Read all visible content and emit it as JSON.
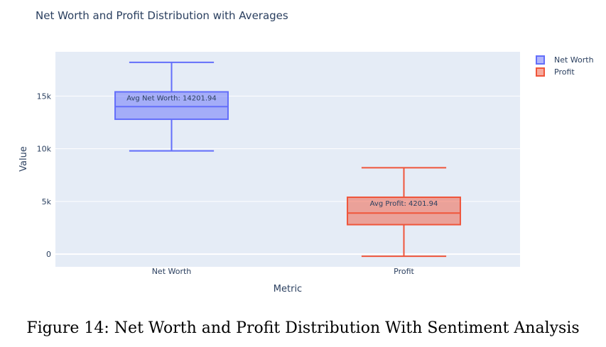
{
  "chart_data": {
    "type": "box",
    "title": "Net Worth and Profit Distribution with Averages",
    "xlabel": "Metric",
    "ylabel": "Value",
    "ylim": [
      -1200,
      19200
    ],
    "yticks": [
      0,
      5000,
      10000,
      15000
    ],
    "ytick_labels": [
      "0",
      "5k",
      "10k",
      "15k"
    ],
    "categories": [
      "Net Worth",
      "Profit"
    ],
    "grid": true,
    "legend_position": "top-right",
    "series": [
      {
        "name": "Net Worth",
        "color": "#636efa",
        "min": 9800,
        "q1": 12800,
        "median": 14000,
        "q3": 15400,
        "max": 18200,
        "annotation": "Avg Net Worth: 14201.94"
      },
      {
        "name": "Profit",
        "color": "#ef553b",
        "min": -200,
        "q1": 2800,
        "median": 3900,
        "q3": 5400,
        "max": 8200,
        "annotation": "Avg Profit: 4201.94"
      }
    ]
  },
  "caption": "Figure 14: Net Worth and Profit Distribution With Sentiment Analysis"
}
